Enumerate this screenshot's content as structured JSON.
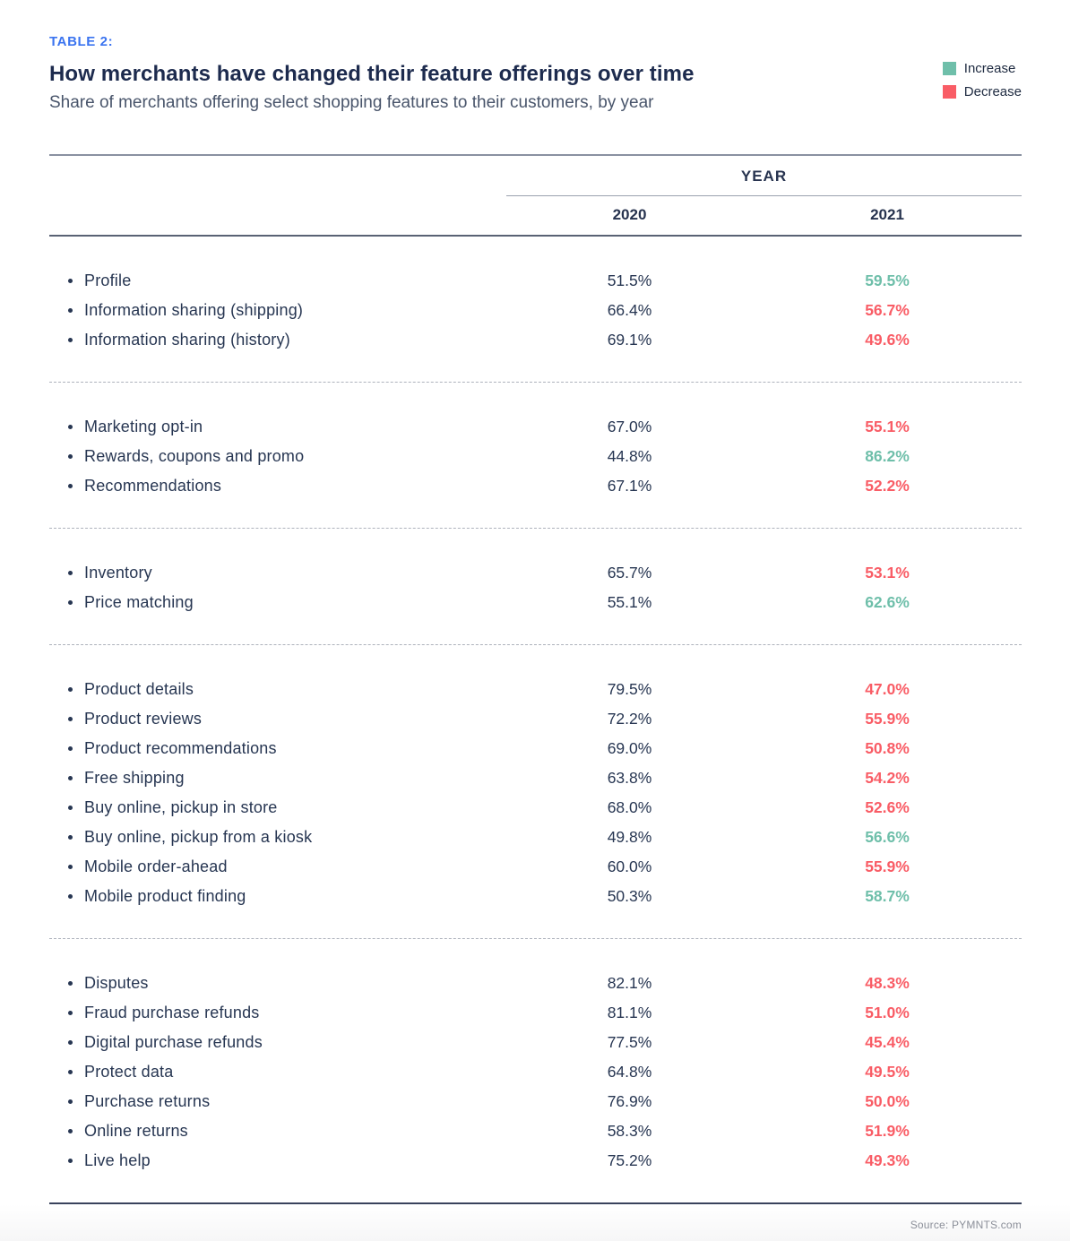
{
  "header": {
    "kicker": "TABLE 2:",
    "title": "How merchants have changed their feature offerings over time",
    "subtitle": "Share of merchants offering select shopping features to their customers, by year"
  },
  "legend": {
    "items": [
      {
        "label": "Increase",
        "color": "#6fbfaa"
      },
      {
        "label": "Decrease",
        "color": "#f95d66"
      }
    ]
  },
  "colors": {
    "increase": "#6fbfaa",
    "decrease": "#f95d66",
    "kicker": "#3b74f0"
  },
  "table": {
    "year_header": "YEAR",
    "columns": [
      "2020",
      "2021"
    ]
  },
  "chart_data": {
    "type": "table",
    "title": "How merchants have changed their feature offerings over time",
    "subtitle": "Share of merchants offering select shopping features to their customers, by year",
    "columns": [
      "2020",
      "2021"
    ],
    "legend": [
      "Increase",
      "Decrease"
    ],
    "groups": [
      {
        "rows": [
          {
            "label": "Profile",
            "y2020": "51.5%",
            "y2021": "59.5%",
            "trend": "increase"
          },
          {
            "label": "Information sharing (shipping)",
            "y2020": "66.4%",
            "y2021": "56.7%",
            "trend": "decrease"
          },
          {
            "label": "Information sharing (history)",
            "y2020": "69.1%",
            "y2021": "49.6%",
            "trend": "decrease"
          }
        ]
      },
      {
        "rows": [
          {
            "label": "Marketing opt-in",
            "y2020": "67.0%",
            "y2021": "55.1%",
            "trend": "decrease"
          },
          {
            "label": "Rewards, coupons and promo",
            "y2020": "44.8%",
            "y2021": "86.2%",
            "trend": "increase"
          },
          {
            "label": "Recommendations",
            "y2020": "67.1%",
            "y2021": "52.2%",
            "trend": "decrease"
          }
        ]
      },
      {
        "rows": [
          {
            "label": "Inventory",
            "y2020": "65.7%",
            "y2021": "53.1%",
            "trend": "decrease"
          },
          {
            "label": "Price matching",
            "y2020": "55.1%",
            "y2021": "62.6%",
            "trend": "increase"
          }
        ]
      },
      {
        "rows": [
          {
            "label": "Product details",
            "y2020": "79.5%",
            "y2021": "47.0%",
            "trend": "decrease"
          },
          {
            "label": "Product reviews",
            "y2020": "72.2%",
            "y2021": "55.9%",
            "trend": "decrease"
          },
          {
            "label": "Product recommendations",
            "y2020": "69.0%",
            "y2021": "50.8%",
            "trend": "decrease"
          },
          {
            "label": "Free shipping",
            "y2020": "63.8%",
            "y2021": "54.2%",
            "trend": "decrease"
          },
          {
            "label": "Buy online, pickup in store",
            "y2020": "68.0%",
            "y2021": "52.6%",
            "trend": "decrease"
          },
          {
            "label": "Buy online, pickup from a kiosk",
            "y2020": "49.8%",
            "y2021": "56.6%",
            "trend": "increase"
          },
          {
            "label": "Mobile order-ahead",
            "y2020": "60.0%",
            "y2021": "55.9%",
            "trend": "decrease"
          },
          {
            "label": "Mobile product finding",
            "y2020": "50.3%",
            "y2021": "58.7%",
            "trend": "increase"
          }
        ]
      },
      {
        "rows": [
          {
            "label": "Disputes",
            "y2020": "82.1%",
            "y2021": "48.3%",
            "trend": "decrease"
          },
          {
            "label": "Fraud purchase refunds",
            "y2020": "81.1%",
            "y2021": "51.0%",
            "trend": "decrease"
          },
          {
            "label": "Digital purchase refunds",
            "y2020": "77.5%",
            "y2021": "45.4%",
            "trend": "decrease"
          },
          {
            "label": "Protect data",
            "y2020": "64.8%",
            "y2021": "49.5%",
            "trend": "decrease"
          },
          {
            "label": "Purchase returns",
            "y2020": "76.9%",
            "y2021": "50.0%",
            "trend": "decrease"
          },
          {
            "label": "Online returns",
            "y2020": "58.3%",
            "y2021": "51.9%",
            "trend": "decrease"
          },
          {
            "label": "Live help",
            "y2020": "75.2%",
            "y2021": "49.3%",
            "trend": "decrease"
          }
        ]
      }
    ]
  },
  "footer": {
    "source": "Source: PYMNTS.com"
  }
}
